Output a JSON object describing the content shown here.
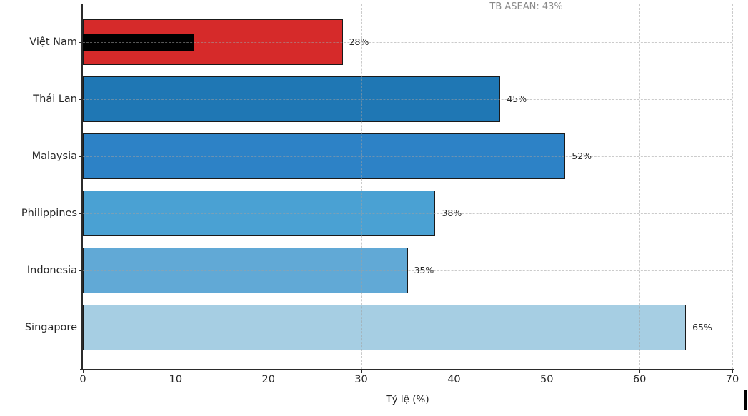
{
  "chart_data": {
    "type": "bar",
    "orientation": "horizontal",
    "title": "",
    "xlabel": "Tỷ lệ (%)",
    "ylabel": "",
    "xlim": [
      0,
      70
    ],
    "x_ticks": [
      0,
      10,
      20,
      30,
      40,
      50,
      60,
      70
    ],
    "grid": true,
    "legend": "none",
    "categories": [
      "Việt Nam",
      "Thái Lan",
      "Malaysia",
      "Philippines",
      "Indonesia",
      "Singapore"
    ],
    "values": [
      28,
      45,
      52,
      38,
      35,
      65
    ],
    "value_labels": [
      "28%",
      "45%",
      "52%",
      "38%",
      "35%",
      "65%"
    ],
    "bar_colors": [
      "#d62a2a",
      "#1f77b4",
      "#2d82c6",
      "#4aa1d3",
      "#61a9d6",
      "#a6cee3"
    ],
    "bar_edge_color": "#1a1a1a",
    "overlay_bar": {
      "category": "Việt Nam",
      "category_index": 0,
      "value": 12,
      "color": "#000000"
    },
    "reference_line": {
      "value": 43,
      "label": "TB ASEAN: 43%",
      "color": "#6e6e6e",
      "style": "dashed"
    }
  }
}
